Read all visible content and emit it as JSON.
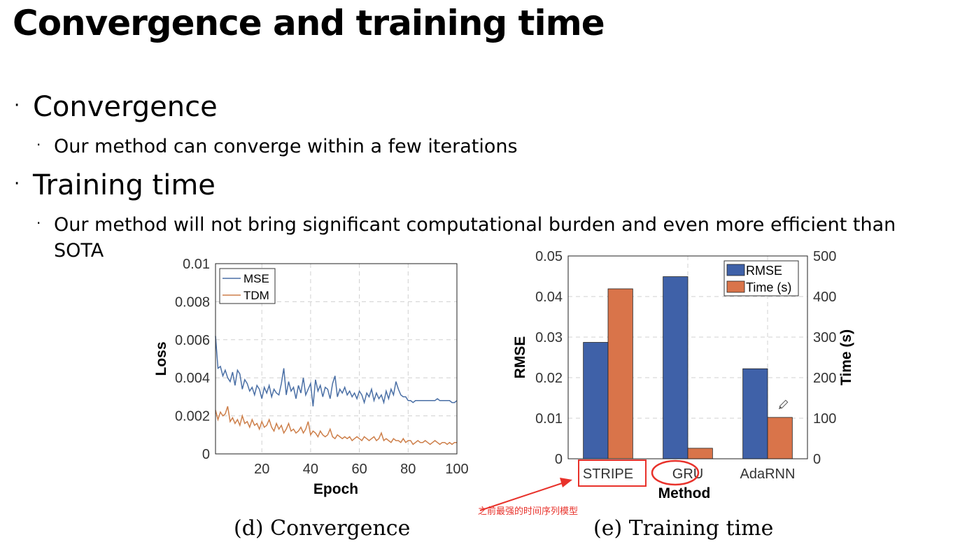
{
  "slide": {
    "title": "Convergence and training time",
    "bullets": [
      {
        "text": "Convergence",
        "sub": [
          "Our method can converge within a few iterations"
        ]
      },
      {
        "text": "Training time",
        "sub": [
          "Our method will not bring significant computational burden and even more efficient than",
          "SOTA"
        ]
      }
    ],
    "bullet_glyph": "·"
  },
  "chart_data": [
    {
      "type": "line",
      "xlabel": "Epoch",
      "ylabel": "Loss",
      "xlim": [
        1,
        100
      ],
      "ylim": [
        0,
        0.01
      ],
      "xticks": [
        20,
        40,
        60,
        80,
        100
      ],
      "yticks": [
        0,
        0.002,
        0.004,
        0.006,
        0.008,
        0.01
      ],
      "ytick_labels": [
        "0",
        "0.002",
        "0.004",
        "0.006",
        "0.008",
        "0.01"
      ],
      "grid": true,
      "legend_placement": "top-left",
      "caption": "(d) Convergence",
      "series": [
        {
          "name": "MSE",
          "color": "#4a6fa5",
          "x": [
            1,
            2,
            3,
            4,
            5,
            6,
            7,
            8,
            9,
            10,
            11,
            12,
            13,
            14,
            15,
            16,
            17,
            18,
            19,
            20,
            21,
            22,
            23,
            24,
            25,
            26,
            27,
            28,
            29,
            30,
            31,
            32,
            33,
            34,
            35,
            36,
            37,
            38,
            39,
            40,
            41,
            42,
            43,
            44,
            45,
            46,
            47,
            48,
            49,
            50,
            51,
            52,
            53,
            54,
            55,
            56,
            57,
            58,
            59,
            60,
            61,
            62,
            63,
            64,
            65,
            66,
            67,
            68,
            69,
            70,
            71,
            72,
            73,
            74,
            75,
            76,
            77,
            78,
            79,
            80,
            81,
            82,
            83,
            84,
            85,
            86,
            87,
            88,
            89,
            90,
            91,
            92,
            93,
            94,
            95,
            96,
            97,
            98,
            99,
            100
          ],
          "y": [
            0.0062,
            0.0045,
            0.0046,
            0.0041,
            0.0044,
            0.004,
            0.0038,
            0.0043,
            0.0036,
            0.0044,
            0.0042,
            0.0034,
            0.0039,
            0.0037,
            0.0033,
            0.0035,
            0.0031,
            0.0036,
            0.0034,
            0.0029,
            0.0035,
            0.0032,
            0.0036,
            0.003,
            0.0034,
            0.0032,
            0.0031,
            0.0037,
            0.0045,
            0.0031,
            0.0038,
            0.0033,
            0.0035,
            0.0029,
            0.0036,
            0.0032,
            0.004,
            0.0031,
            0.0034,
            0.0037,
            0.0025,
            0.0039,
            0.0033,
            0.0036,
            0.003,
            0.0035,
            0.0034,
            0.0029,
            0.0037,
            0.0041,
            0.003,
            0.0034,
            0.0032,
            0.0035,
            0.0031,
            0.0033,
            0.003,
            0.0032,
            0.0029,
            0.0033,
            0.0031,
            0.0027,
            0.0032,
            0.003,
            0.0034,
            0.0028,
            0.0032,
            0.0029,
            0.0031,
            0.0027,
            0.0033,
            0.0029,
            0.0034,
            0.0031,
            0.0038,
            0.0034,
            0.0031,
            0.003,
            0.003,
            0.0028,
            0.0028,
            0.0027,
            0.0028,
            0.0028,
            0.0028,
            0.0028,
            0.0028,
            0.0028,
            0.0028,
            0.0028,
            0.0028,
            0.0029,
            0.0028,
            0.0028,
            0.0028,
            0.0028,
            0.0028,
            0.0027,
            0.0027,
            0.0028
          ]
        },
        {
          "name": "TDM",
          "color": "#cd7f4a",
          "x": [
            1,
            2,
            3,
            4,
            5,
            6,
            7,
            8,
            9,
            10,
            11,
            12,
            13,
            14,
            15,
            16,
            17,
            18,
            19,
            20,
            21,
            22,
            23,
            24,
            25,
            26,
            27,
            28,
            29,
            30,
            31,
            32,
            33,
            34,
            35,
            36,
            37,
            38,
            39,
            40,
            41,
            42,
            43,
            44,
            45,
            46,
            47,
            48,
            49,
            50,
            51,
            52,
            53,
            54,
            55,
            56,
            57,
            58,
            59,
            60,
            61,
            62,
            63,
            64,
            65,
            66,
            67,
            68,
            69,
            70,
            71,
            72,
            73,
            74,
            75,
            76,
            77,
            78,
            79,
            80,
            81,
            82,
            83,
            84,
            85,
            86,
            87,
            88,
            89,
            90,
            91,
            92,
            93,
            94,
            95,
            96,
            97,
            98,
            99,
            100
          ],
          "y": [
            0.0023,
            0.0018,
            0.0022,
            0.002,
            0.0021,
            0.0025,
            0.0017,
            0.0019,
            0.0016,
            0.0018,
            0.0015,
            0.002,
            0.0016,
            0.0017,
            0.0014,
            0.0018,
            0.0015,
            0.0016,
            0.0013,
            0.0017,
            0.0014,
            0.0015,
            0.0018,
            0.0014,
            0.0012,
            0.0016,
            0.0013,
            0.0015,
            0.0011,
            0.0013,
            0.0016,
            0.0012,
            0.0013,
            0.0011,
            0.0012,
            0.0014,
            0.0011,
            0.0013,
            0.0017,
            0.001,
            0.0012,
            0.0011,
            0.0009,
            0.0012,
            0.001,
            0.0009,
            0.001,
            0.0013,
            0.0009,
            0.0008,
            0.001,
            0.0009,
            0.0008,
            0.0009,
            0.0008,
            0.0009,
            0.0007,
            0.0008,
            0.0009,
            0.0008,
            0.0007,
            0.0009,
            0.0008,
            0.0007,
            0.0008,
            0.0009,
            0.0007,
            0.0008,
            0.0011,
            0.0007,
            0.0008,
            0.0007,
            0.0006,
            0.0008,
            0.0007,
            0.0007,
            0.0006,
            0.0008,
            0.0006,
            0.0007,
            0.0007,
            0.0005,
            0.0006,
            0.0007,
            0.0006,
            0.0006,
            0.0007,
            0.0006,
            0.0005,
            0.0006,
            0.0007,
            0.0006,
            0.0005,
            0.0006,
            0.0006,
            0.0005,
            0.0006,
            0.0005,
            0.0006,
            0.0006
          ]
        }
      ]
    },
    {
      "type": "bar",
      "xlabel": "Method",
      "ylabel": "RMSE",
      "ylabel_right": "Time (s)",
      "categories": [
        "STRIPE",
        "GRU",
        "AdaRNN"
      ],
      "ylim": [
        0,
        0.05
      ],
      "ylim_right": [
        0,
        500
      ],
      "yticks": [
        0,
        0.01,
        0.02,
        0.03,
        0.04,
        0.05
      ],
      "ytick_labels": [
        "0",
        "0.01",
        "0.02",
        "0.03",
        "0.04",
        "0.05"
      ],
      "yticks_right": [
        0,
        100,
        200,
        300,
        400,
        500
      ],
      "grid": true,
      "legend_placement": "top-right",
      "caption": "(e) Training time",
      "series": [
        {
          "name": "RMSE",
          "axis": "left",
          "color": "#3f61a8",
          "values": [
            0.0287,
            0.0449,
            0.0222
          ]
        },
        {
          "name": "Time (s)",
          "axis": "right",
          "color": "#d9744a",
          "values": [
            419,
            26,
            102
          ]
        }
      ],
      "annotation": {
        "text": "之前最强的时间序列模型",
        "color": "#e8322b"
      }
    }
  ]
}
